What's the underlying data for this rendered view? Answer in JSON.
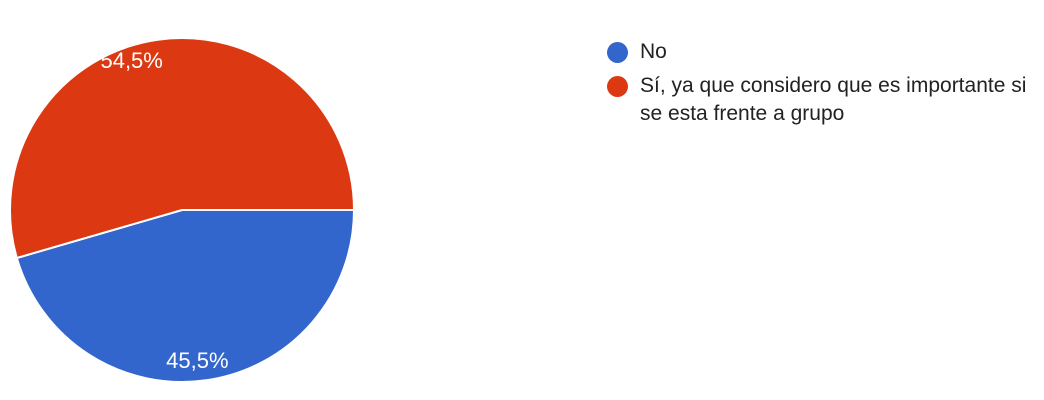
{
  "chart_data": {
    "type": "pie",
    "slices": [
      {
        "label": "No",
        "value": 45.5,
        "display": "45,5%",
        "color": "#3366cc"
      },
      {
        "label": "Sí, ya que considero que es importante si se esta frente a grupo",
        "value": 54.5,
        "display": "54,5%",
        "color": "#dc3912"
      }
    ],
    "legend_position": "right"
  },
  "legend": {
    "items": [
      {
        "text": "No",
        "color": "#3366cc"
      },
      {
        "text": "Sí, ya que considero que es importante si se esta frente a grupo",
        "color": "#dc3912"
      }
    ]
  }
}
